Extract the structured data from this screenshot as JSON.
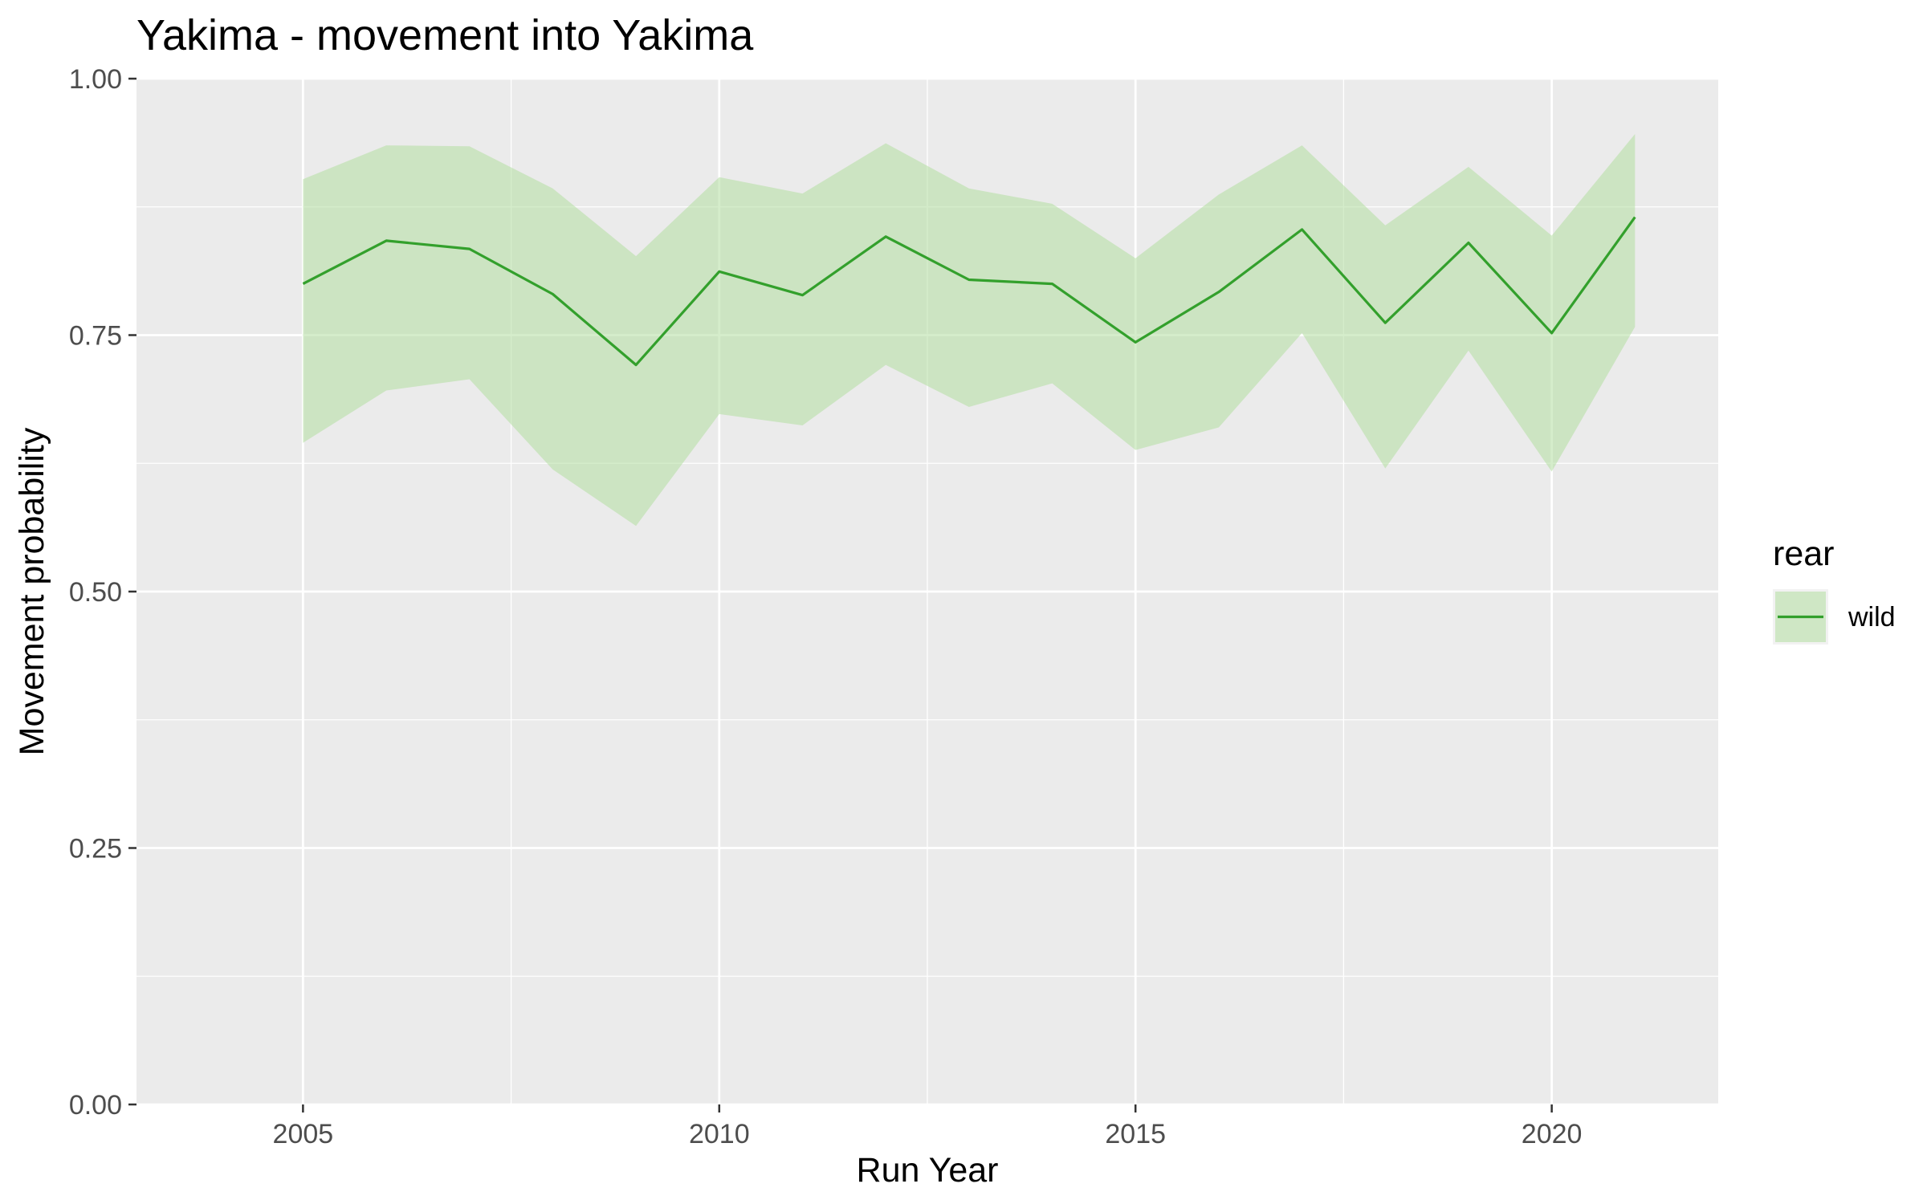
{
  "chart_data": {
    "type": "line",
    "title": "Yakima - movement into Yakima",
    "xlabel": "Run Year",
    "ylabel": "Movement probability",
    "xlim": [
      2003,
      2022
    ],
    "ylim": [
      0,
      1
    ],
    "x_ticks": [
      2005,
      2010,
      2015,
      2020
    ],
    "x_tick_labels": [
      "2005",
      "2010",
      "2015",
      "2020"
    ],
    "y_ticks": [
      0,
      0.25,
      0.5,
      0.75,
      1.0
    ],
    "y_tick_labels": [
      "0.00",
      "0.25",
      "0.50",
      "0.75",
      "1.00"
    ],
    "grid": true,
    "legend": {
      "title": "rear",
      "position": "right"
    },
    "colors": {
      "line": "#33a02c",
      "ribbon": "#b2dfa0",
      "panel": "#ebebeb",
      "grid": "#ffffff"
    },
    "x": [
      2005,
      2006,
      2007,
      2008,
      2009,
      2010,
      2011,
      2012,
      2013,
      2014,
      2015,
      2016,
      2017,
      2018,
      2019,
      2020,
      2021
    ],
    "series": [
      {
        "name": "wild",
        "values": [
          0.8,
          0.842,
          0.834,
          0.79,
          0.721,
          0.812,
          0.789,
          0.846,
          0.804,
          0.8,
          0.743,
          0.792,
          0.853,
          0.762,
          0.84,
          0.752,
          0.865
        ],
        "lower": [
          0.645,
          0.696,
          0.707,
          0.619,
          0.564,
          0.673,
          0.662,
          0.721,
          0.68,
          0.703,
          0.638,
          0.66,
          0.752,
          0.62,
          0.735,
          0.617,
          0.758
        ],
        "upper": [
          0.902,
          0.935,
          0.934,
          0.893,
          0.827,
          0.904,
          0.888,
          0.937,
          0.893,
          0.878,
          0.825,
          0.887,
          0.935,
          0.857,
          0.914,
          0.847,
          0.946
        ]
      }
    ]
  }
}
